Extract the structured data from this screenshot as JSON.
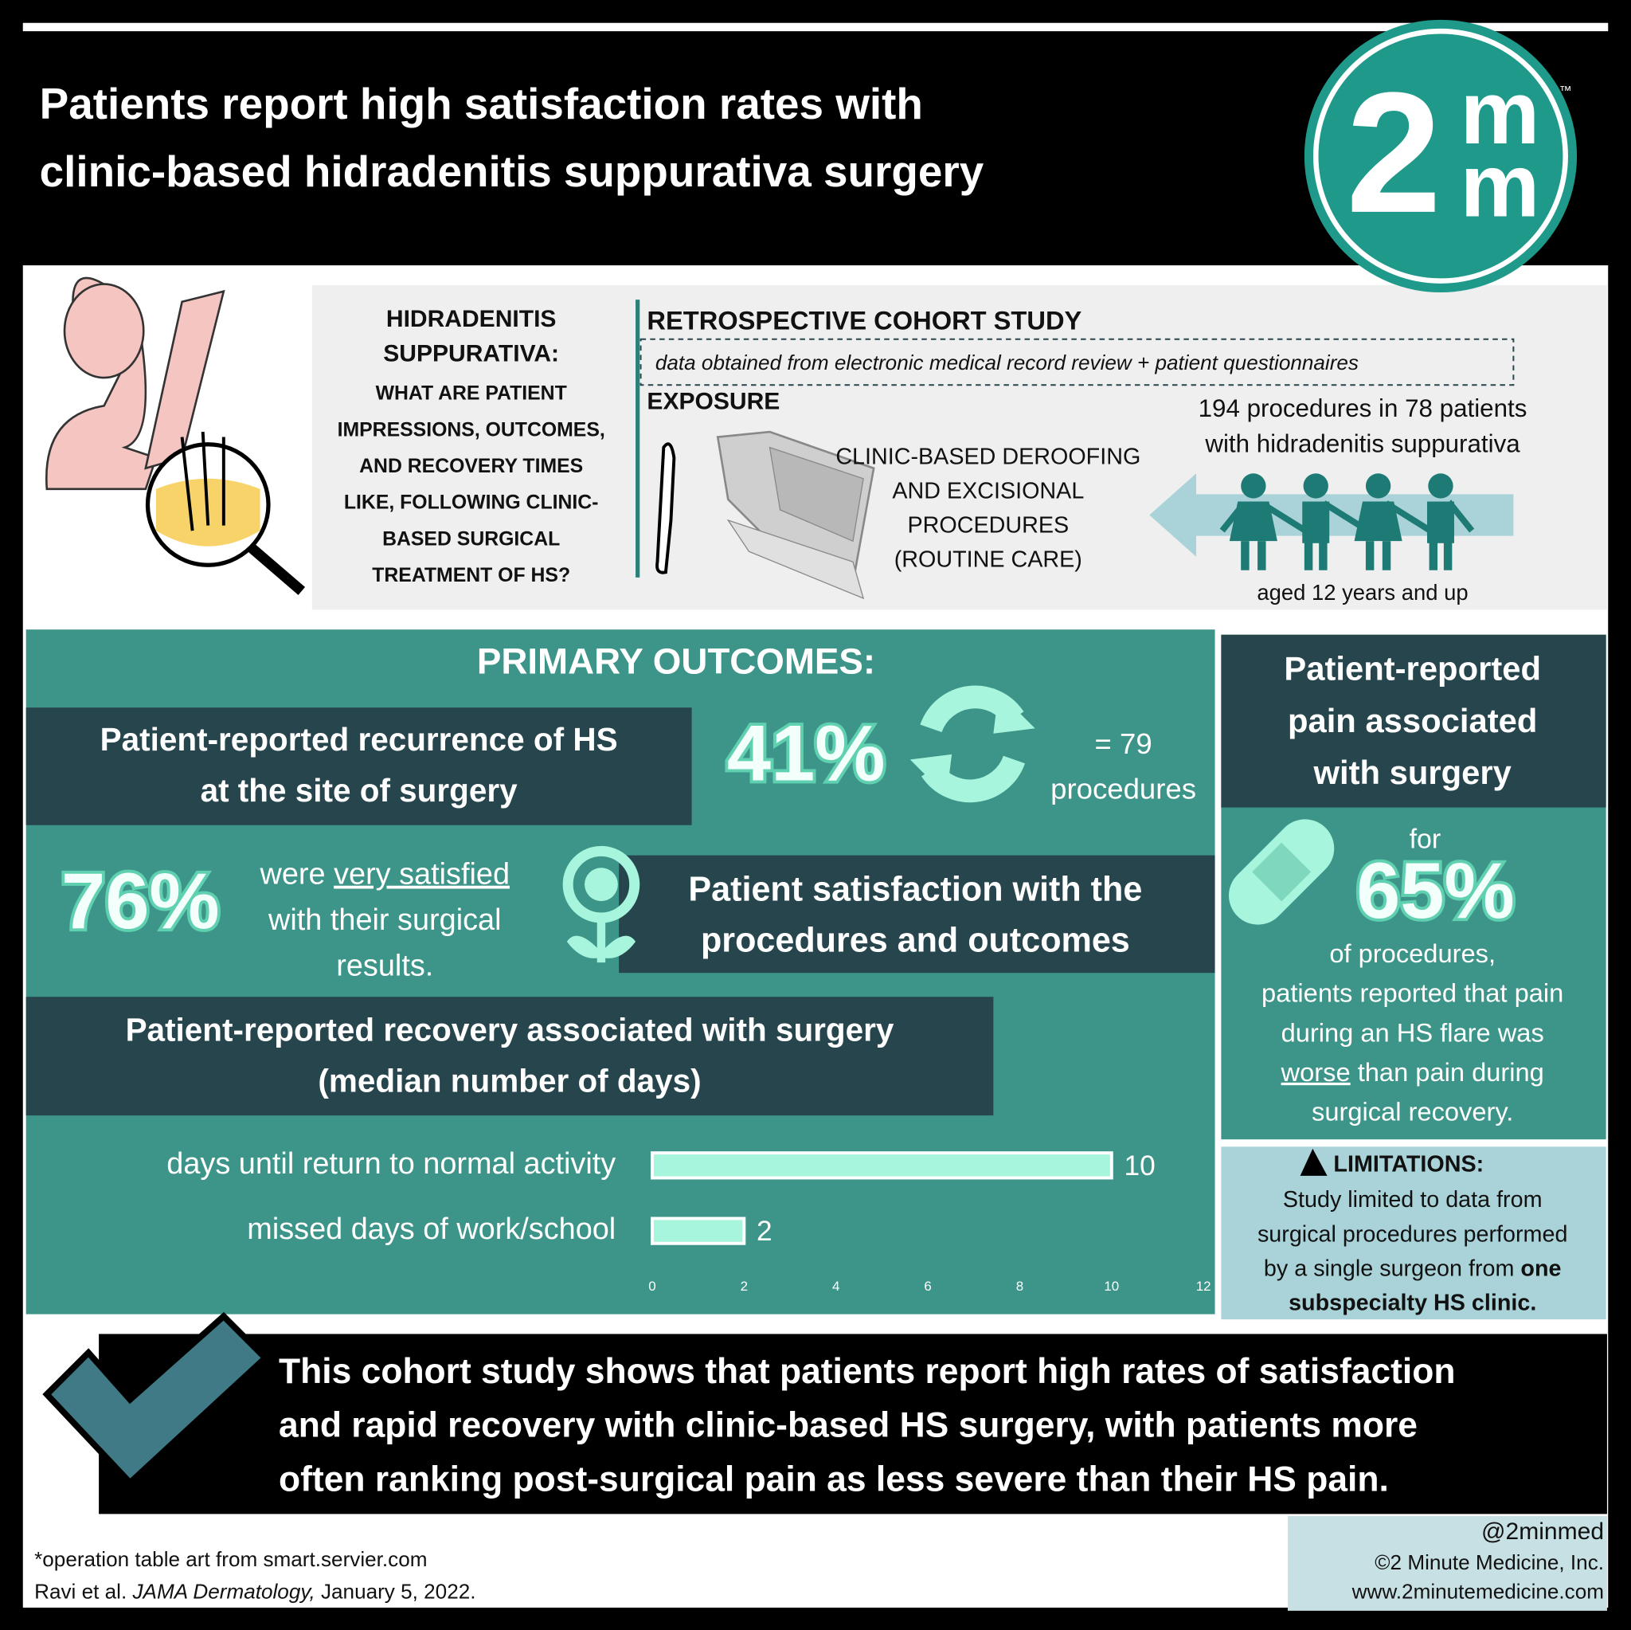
{
  "header": {
    "title_lines": [
      "Patients report high satisfaction rates with",
      "clinic-based hidradenitis suppurativa surgery"
    ],
    "logo": {
      "digit": "2",
      "letters": [
        "m",
        "m"
      ],
      "tm": "™"
    }
  },
  "question": {
    "heading_lines": [
      "HIDRADENITIS",
      "SUPPURATIVA:"
    ],
    "lines": [
      "WHAT ARE PATIENT",
      "IMPRESSIONS, OUTCOMES,",
      "AND RECOVERY TIMES",
      "LIKE, FOLLOWING CLINIC-",
      "BASED SURGICAL",
      "TREATMENT OF HS?"
    ]
  },
  "study": {
    "design": "RETROSPECTIVE COHORT STUDY",
    "data_source": "data obtained from electronic medical record review + patient questionnaires",
    "exposure_label": "EXPOSURE",
    "exposure_lines": [
      "CLINIC-BASED DEROOFING",
      "AND EXCISIONAL",
      "PROCEDURES",
      "(ROUTINE CARE)"
    ],
    "population_lines": [
      "194 procedures in 78 patients",
      "with hidradenitis suppurativa"
    ],
    "age": "aged 12 years and up"
  },
  "outcomes": {
    "heading": "PRIMARY OUTCOMES:",
    "recurrence": {
      "label_lines": [
        "Patient-reported recurrence of HS",
        "at the site of surgery"
      ],
      "percent": "41%",
      "count_lines": [
        "= 79",
        "procedures"
      ]
    },
    "satisfaction": {
      "percent": "76%",
      "lines": [
        [
          "were ",
          "very satisfied"
        ],
        [
          "with their surgical"
        ],
        [
          "results."
        ]
      ],
      "label_lines": [
        "Patient satisfaction with the",
        "procedures and outcomes"
      ]
    },
    "recovery": {
      "label_lines": [
        "Patient-reported recovery associated with surgery",
        "(median number of days)"
      ],
      "chart": {
        "type": "bar",
        "categories": [
          "days until return to normal activity",
          "missed days of work/school"
        ],
        "values": [
          10,
          2
        ],
        "color": "#a6f5dc",
        "xlim": [
          0,
          12
        ],
        "xticks": [
          0,
          2,
          4,
          6,
          8,
          10,
          12
        ]
      }
    }
  },
  "pain": {
    "heading_lines": [
      "Patient-reported",
      "pain associated",
      "with surgery"
    ],
    "pre": "for",
    "percent": "65%",
    "lines": [
      [
        "of procedures,"
      ],
      [
        "patients reported that pain"
      ],
      [
        "during an HS flare was"
      ],
      [
        "worse",
        " than pain during"
      ],
      [
        "surgical recovery."
      ]
    ]
  },
  "limitations": {
    "title": "LIMITATIONS:",
    "lines": [
      [
        "Study limited to data from"
      ],
      [
        "surgical procedures performed"
      ],
      [
        "by a single surgeon from ",
        "one"
      ],
      [
        "subspecialty HS clinic."
      ]
    ]
  },
  "conclusion": {
    "lines": [
      "This cohort study shows that patients report high rates of satisfaction",
      "and rapid recovery with clinic-based HS surgery, with patients more",
      "often ranking post-surgical pain as less severe than their HS pain."
    ]
  },
  "footer": {
    "art_credit": "*operation table art from smart.servier.com",
    "citation": [
      "Ravi et al. ",
      "JAMA Dermatology,",
      " January 5, 2022."
    ],
    "handle": "@2minmed",
    "copyright": "©2 Minute Medicine, Inc.",
    "website": "www.2minutemedicine.com"
  }
}
